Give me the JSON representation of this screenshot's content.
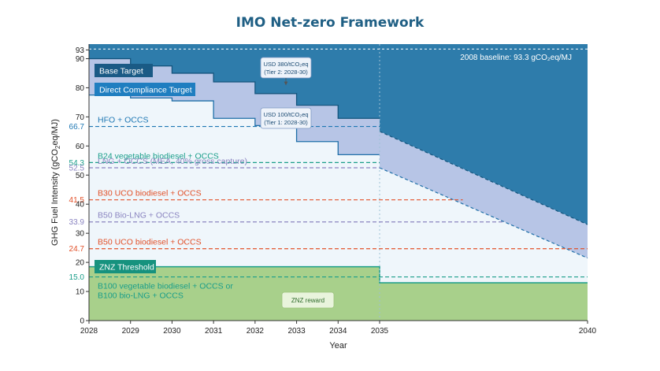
{
  "title": "IMO Net-zero Framework",
  "chart_data": {
    "type": "area",
    "title": "IMO Net-zero Framework",
    "xlabel": "Year",
    "ylabel": "GHG Fuel Intensity (gCO2eq/MJ)",
    "xlim": [
      2028,
      2040
    ],
    "ylim": [
      0,
      95
    ],
    "x_ticks": [
      2028,
      2029,
      2030,
      2031,
      2032,
      2033,
      2034,
      2035,
      2040
    ],
    "y_ticks_black": [
      0,
      10,
      20,
      30,
      40,
      50,
      60,
      70,
      80,
      90,
      93
    ],
    "baseline": {
      "value": 93.3,
      "label": "2008 baseline: 93.3 gCO₂eq/MJ"
    },
    "base_target": {
      "name": "Base Target",
      "steps": [
        {
          "from": 2028,
          "to": 2029,
          "value": 90
        },
        {
          "from": 2029,
          "to": 2030,
          "value": 87.5
        },
        {
          "from": 2030,
          "to": 2031,
          "value": 85
        },
        {
          "from": 2031,
          "to": 2032,
          "value": 82
        },
        {
          "from": 2032,
          "to": 2033,
          "value": 78
        },
        {
          "from": 2033,
          "to": 2034,
          "value": 74
        },
        {
          "from": 2034,
          "to": 2035,
          "value": 69.5
        }
      ],
      "projection": [
        {
          "x": 2035,
          "y": 65
        },
        {
          "x": 2040,
          "y": 33
        }
      ],
      "color": "#2e7cab"
    },
    "direct_compliance_target": {
      "name": "Direct Compliance Target",
      "steps": [
        {
          "from": 2028,
          "to": 2029,
          "value": 77.5
        },
        {
          "from": 2029,
          "to": 2030,
          "value": 76.5
        },
        {
          "from": 2030,
          "to": 2031,
          "value": 75.5
        },
        {
          "from": 2031,
          "to": 2032,
          "value": 69.5
        },
        {
          "from": 2032,
          "to": 2033,
          "value": 67
        },
        {
          "from": 2033,
          "to": 2034,
          "value": 61.5
        },
        {
          "from": 2034,
          "to": 2035,
          "value": 57
        }
      ],
      "projection": [
        {
          "x": 2035,
          "y": 52.5
        },
        {
          "x": 2040,
          "y": 21.5
        }
      ],
      "color": "#b7c5e6"
    },
    "znz_threshold": {
      "name": "ZNZ Threshold",
      "steps": [
        {
          "from": 2028,
          "to": 2035,
          "value": 18.5
        },
        {
          "from": 2035,
          "to": 2040,
          "value": 13
        }
      ],
      "color": "#a8d08b"
    },
    "reference_lines": [
      {
        "value": 66.7,
        "value_label": "66.7",
        "label": "HFO + OCCS",
        "color": "#1f78b4",
        "to": 2035
      },
      {
        "value": 54.3,
        "value_label": "54.3",
        "label": "B24 vegetable biodiesel + OCCS",
        "color": "#1a9e8a",
        "to": 2035
      },
      {
        "value": 52.5,
        "value_label": "52.5",
        "label": "LNG + OCCS (MEA, 40% gross capture)",
        "color": "#8a84c0",
        "to": 2035
      },
      {
        "value": 41.5,
        "value_label": "41.5",
        "label": "B30 UCO biodiesel + OCCS",
        "color": "#e2512a",
        "to": 2037
      },
      {
        "value": 33.9,
        "value_label": "33.9",
        "label": "B50 Bio-LNG + OCCS",
        "color": "#8a84c0",
        "to": 2038
      },
      {
        "value": 24.7,
        "value_label": "24.7",
        "label": "B50 UCO biodiesel + OCCS",
        "color": "#e2512a",
        "to": 2040
      },
      {
        "value": 15.0,
        "value_label": "15.0",
        "label": "B100 vegetable biodiesel + OCCS or B100 bio-LNG + OCCS",
        "color": "#1a9e8a",
        "to": 2040
      }
    ],
    "annotations": {
      "tier2_line1": "USD 380/tCO₂eq",
      "tier2_line2": "(Tier 2: 2028-30)",
      "tier1_line1": "USD 100/tCO₂eq",
      "tier1_line2": "(Tier 1: 2028-30)",
      "znz_reward": "ZNZ reward",
      "b100_line1": "B100 vegetable biodiesel + OCCS or",
      "b100_line2": "B100 bio-LNG + OCCS"
    },
    "grid": false,
    "legend": "inline labels"
  }
}
